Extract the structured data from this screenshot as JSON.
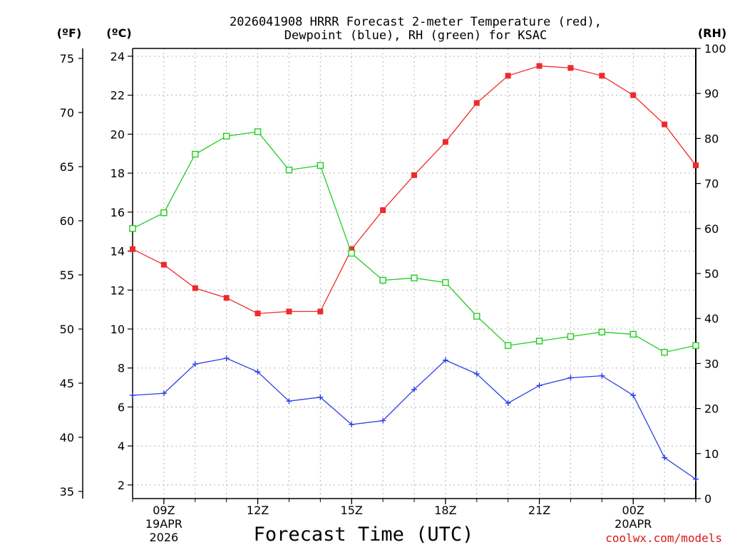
{
  "chart_data": {
    "type": "line",
    "title_line1": "2026041908 HRRR Forecast 2-meter Temperature (red),",
    "title_line2": "Dewpoint (blue), RH (green) for KSAC",
    "xlabel": "Forecast Time (UTC)",
    "watermark": "coolwx.com/models",
    "left_unit_f": "(ºF)",
    "left_unit_c": "(ºC)",
    "right_unit": "(RH)",
    "x_hours": [
      8,
      9,
      10,
      11,
      12,
      13,
      14,
      15,
      16,
      17,
      18,
      19,
      20,
      21,
      22,
      23,
      24,
      25,
      26
    ],
    "x_ticks": [
      {
        "hour": 9,
        "label": "09Z",
        "sub1": "19APR",
        "sub2": "2026"
      },
      {
        "hour": 12,
        "label": "12Z",
        "sub1": "",
        "sub2": ""
      },
      {
        "hour": 15,
        "label": "15Z",
        "sub1": "",
        "sub2": ""
      },
      {
        "hour": 18,
        "label": "18Z",
        "sub1": "",
        "sub2": ""
      },
      {
        "hour": 21,
        "label": "21Z",
        "sub1": "",
        "sub2": ""
      },
      {
        "hour": 24,
        "label": "00Z",
        "sub1": "20APR",
        "sub2": ""
      }
    ],
    "y_c_range": [
      1.3,
      24.4
    ],
    "y_c_ticks": [
      "2",
      "4",
      "6",
      "8",
      "10",
      "12",
      "14",
      "16",
      "18",
      "20",
      "22",
      "24"
    ],
    "y_f_ticks": [
      "35",
      "40",
      "45",
      "50",
      "55",
      "60",
      "65",
      "70",
      "75"
    ],
    "y_rh_range": [
      0,
      100
    ],
    "y_rh_ticks": [
      "0",
      "10",
      "20",
      "30",
      "40",
      "50",
      "60",
      "70",
      "80",
      "90",
      "100"
    ],
    "series": [
      {
        "name": "Temperature",
        "unit": "C",
        "color": "#ee2a2a",
        "marker": "filled-square",
        "values": [
          14.1,
          13.3,
          12.1,
          11.6,
          10.8,
          10.9,
          10.9,
          14.1,
          16.1,
          17.9,
          19.6,
          21.6,
          23.0,
          23.5,
          23.4,
          23.0,
          22.0,
          20.5,
          18.4
        ]
      },
      {
        "name": "Dewpoint",
        "unit": "C",
        "color": "#2a3fe6",
        "marker": "plus",
        "values": [
          6.6,
          6.7,
          8.2,
          8.5,
          7.8,
          6.3,
          6.5,
          5.1,
          5.3,
          6.9,
          8.4,
          7.7,
          6.2,
          7.1,
          7.5,
          7.6,
          6.6,
          3.4,
          2.3
        ]
      },
      {
        "name": "RH",
        "unit": "%",
        "color": "#22cc22",
        "marker": "open-square",
        "values": [
          60,
          63.5,
          76.5,
          80.5,
          81.5,
          73,
          74,
          54.5,
          48.5,
          49,
          48,
          40.5,
          34,
          35,
          36,
          37,
          36.5,
          32.5,
          34
        ]
      }
    ]
  }
}
